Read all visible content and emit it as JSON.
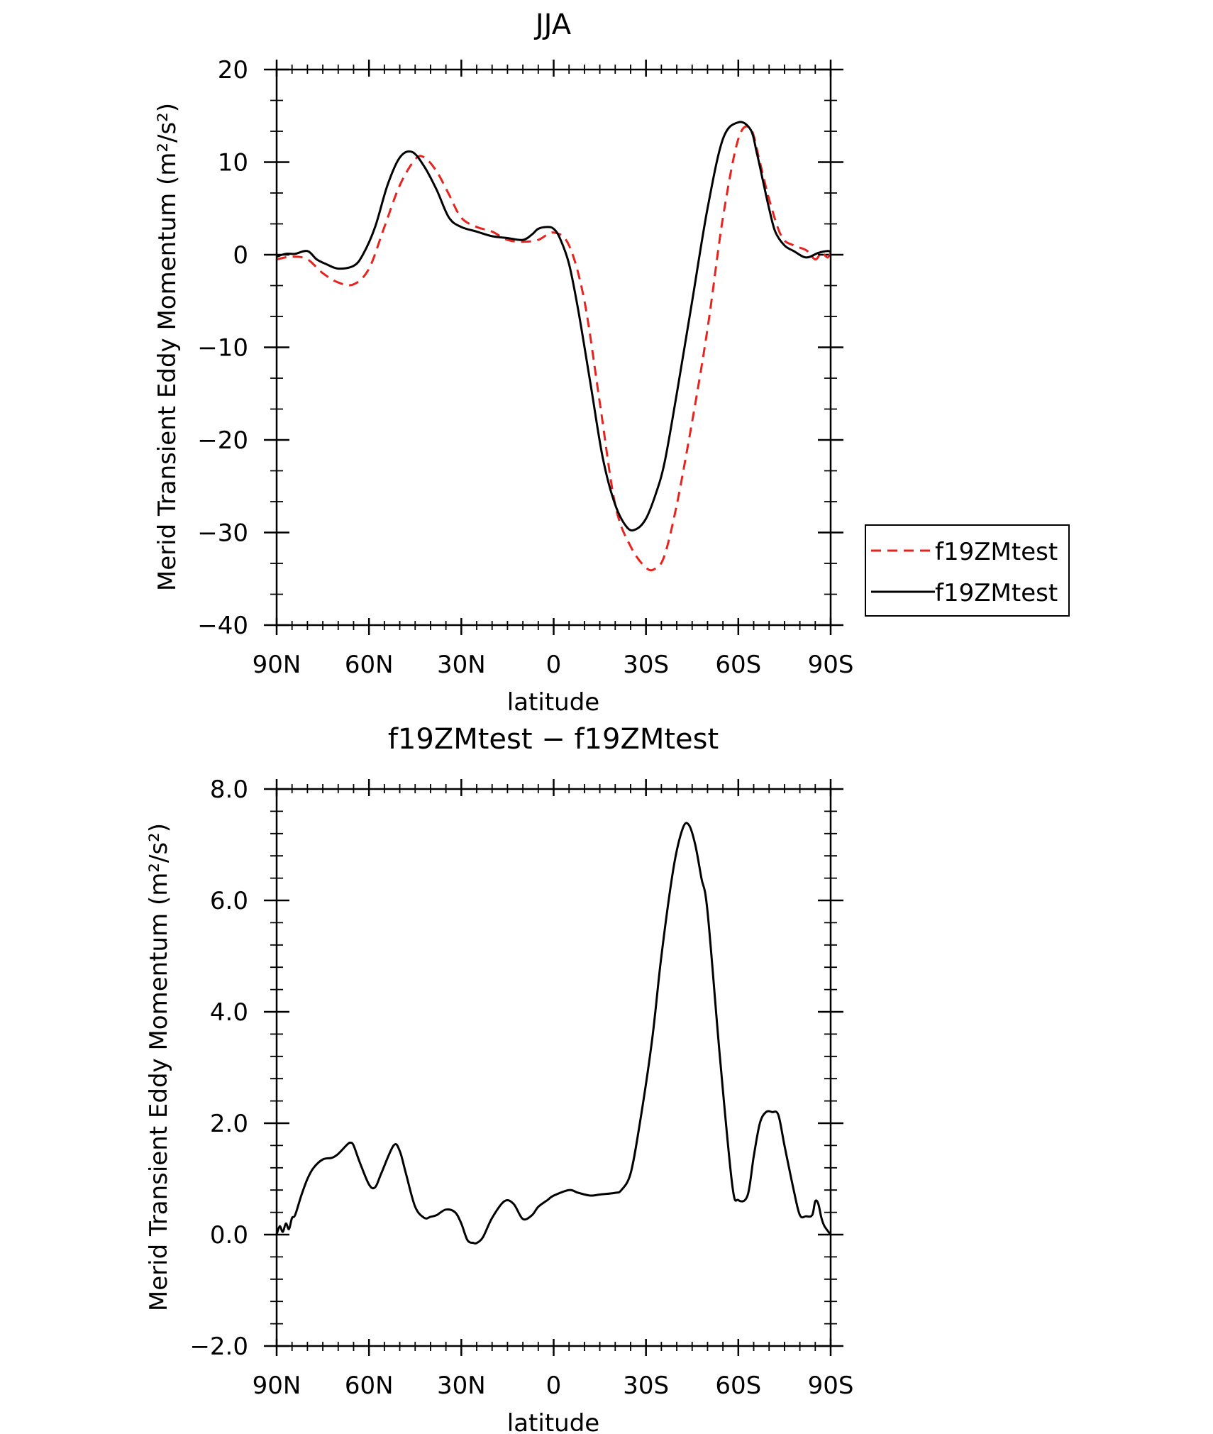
{
  "chart_data": [
    {
      "type": "line",
      "title": "JJA",
      "xlabel": "latitude",
      "ylabel": "Merid Transient Eddy Momentum (m²/s²)",
      "xlim": [
        90,
        -90
      ],
      "ylim": [
        -40,
        20
      ],
      "x_ticks": [
        90,
        60,
        30,
        0,
        -30,
        -60,
        -90
      ],
      "x_tick_labels": [
        "90N",
        "60N",
        "30N",
        "0",
        "30S",
        "60S",
        "90S"
      ],
      "y_ticks": [
        -40,
        -30,
        -20,
        -10,
        0,
        10,
        20
      ],
      "y_tick_labels": [
        "−40",
        "−30",
        "−20",
        "−10",
        "0",
        "10",
        "20"
      ],
      "legend_position": "right",
      "series": [
        {
          "name": "f19ZMtest",
          "color": "#e8231e",
          "dash": "dashed",
          "x": [
            90,
            85,
            80,
            75,
            70,
            65,
            60,
            55,
            50,
            45,
            42,
            38,
            34,
            30,
            25,
            20,
            15,
            10,
            5,
            0,
            -5,
            -10,
            -15,
            -20,
            -25,
            -30,
            -33,
            -36,
            -40,
            -45,
            -50,
            -55,
            -60,
            -64,
            -67,
            -70,
            -74,
            -78,
            -82,
            -85,
            -87,
            -89,
            -90
          ],
          "y": [
            -0.5,
            -0.2,
            -0.5,
            -2,
            -3,
            -3.2,
            -1.5,
            3,
            7.5,
            10.3,
            10.5,
            9,
            6.5,
            4,
            3,
            2.5,
            1.6,
            1.4,
            1.6,
            2.4,
            1,
            -5,
            -16,
            -27,
            -31.5,
            -33.8,
            -33.9,
            -32.5,
            -27,
            -18,
            -8,
            4,
            12.5,
            13.6,
            10,
            6,
            2,
            1,
            0.5,
            -0.5,
            0.2,
            -0.3,
            0.3
          ]
        },
        {
          "name": "f19ZMtest",
          "color": "#000000",
          "dash": "solid",
          "x": [
            90,
            87,
            84,
            80,
            77,
            74,
            70,
            65,
            62,
            58,
            54,
            50,
            46,
            42,
            38,
            34,
            30,
            25,
            20,
            15,
            10,
            7,
            5,
            2,
            0,
            -2,
            -5,
            -8,
            -12,
            -16,
            -20,
            -24,
            -27,
            -30,
            -33,
            -36,
            -40,
            -45,
            -50,
            -55,
            -60,
            -64,
            -66,
            -68,
            -70,
            -72,
            -75,
            -78,
            -82,
            -86,
            -89,
            -90
          ],
          "y": [
            -0.2,
            0.1,
            0.1,
            0.4,
            -0.5,
            -1,
            -1.5,
            -1.2,
            0,
            3,
            7.5,
            10.5,
            11.1,
            9.5,
            7,
            4,
            3,
            2.5,
            2,
            1.8,
            1.6,
            2.2,
            2.8,
            3,
            2.8,
            1.8,
            -1,
            -6,
            -14,
            -22,
            -27,
            -29.5,
            -29.6,
            -28.5,
            -26,
            -22.5,
            -15,
            -5,
            5,
            12.5,
            14.3,
            13.5,
            11,
            8,
            5,
            2.5,
            1,
            0.4,
            -0.3,
            0.2,
            0.4,
            0.3
          ]
        }
      ]
    },
    {
      "type": "line",
      "title": "f19ZMtest − f19ZMtest",
      "xlabel": "latitude",
      "ylabel": "Merid Transient Eddy Momentum (m²/s²)",
      "xlim": [
        90,
        -90
      ],
      "ylim": [
        -2.0,
        8.0
      ],
      "x_ticks": [
        90,
        60,
        30,
        0,
        -30,
        -60,
        -90
      ],
      "x_tick_labels": [
        "90N",
        "60N",
        "30N",
        "0",
        "30S",
        "60S",
        "90S"
      ],
      "y_ticks": [
        -2.0,
        0.0,
        2.0,
        4.0,
        6.0,
        8.0
      ],
      "y_tick_labels": [
        "−2.0",
        "0.0",
        "2.0",
        "4.0",
        "6.0",
        "8.0"
      ],
      "series": [
        {
          "color": "#000000",
          "dash": "solid",
          "x": [
            90,
            89,
            88,
            87,
            86,
            85,
            84,
            82,
            80,
            78,
            75,
            72,
            70,
            67,
            66,
            65,
            63,
            60,
            58,
            56,
            52,
            50,
            48,
            45,
            42,
            40,
            38,
            35,
            32,
            30,
            28,
            26,
            25,
            23,
            20,
            16,
            13,
            10,
            7,
            5,
            2,
            0,
            -5,
            -8,
            -12,
            -15,
            -20,
            -22,
            -25,
            -28,
            -32,
            -35,
            -39,
            -42,
            -44,
            -46,
            -48,
            -50,
            -54,
            -58,
            -60,
            -63,
            -65,
            -67,
            -69,
            -71,
            -73,
            -75,
            -78,
            -80,
            -82,
            -84,
            -85,
            -86,
            -87,
            -88,
            -90
          ],
          "y": [
            0.0,
            0.15,
            0.05,
            0.2,
            0.1,
            0.3,
            0.35,
            0.7,
            1.0,
            1.2,
            1.35,
            1.38,
            1.45,
            1.62,
            1.65,
            1.6,
            1.3,
            0.9,
            0.85,
            1.1,
            1.6,
            1.5,
            1.1,
            0.5,
            0.3,
            0.32,
            0.35,
            0.45,
            0.4,
            0.2,
            -0.1,
            -0.15,
            -0.15,
            -0.05,
            0.3,
            0.6,
            0.55,
            0.28,
            0.35,
            0.5,
            0.62,
            0.7,
            0.8,
            0.75,
            0.7,
            0.72,
            0.75,
            0.8,
            1.1,
            2.0,
            3.5,
            5.0,
            6.6,
            7.3,
            7.35,
            7.0,
            6.4,
            5.8,
            3.2,
            0.9,
            0.62,
            0.7,
            1.4,
            2.0,
            2.2,
            2.2,
            2.15,
            1.6,
            0.8,
            0.35,
            0.33,
            0.35,
            0.6,
            0.55,
            0.3,
            0.15,
            0.0
          ]
        }
      ]
    }
  ]
}
